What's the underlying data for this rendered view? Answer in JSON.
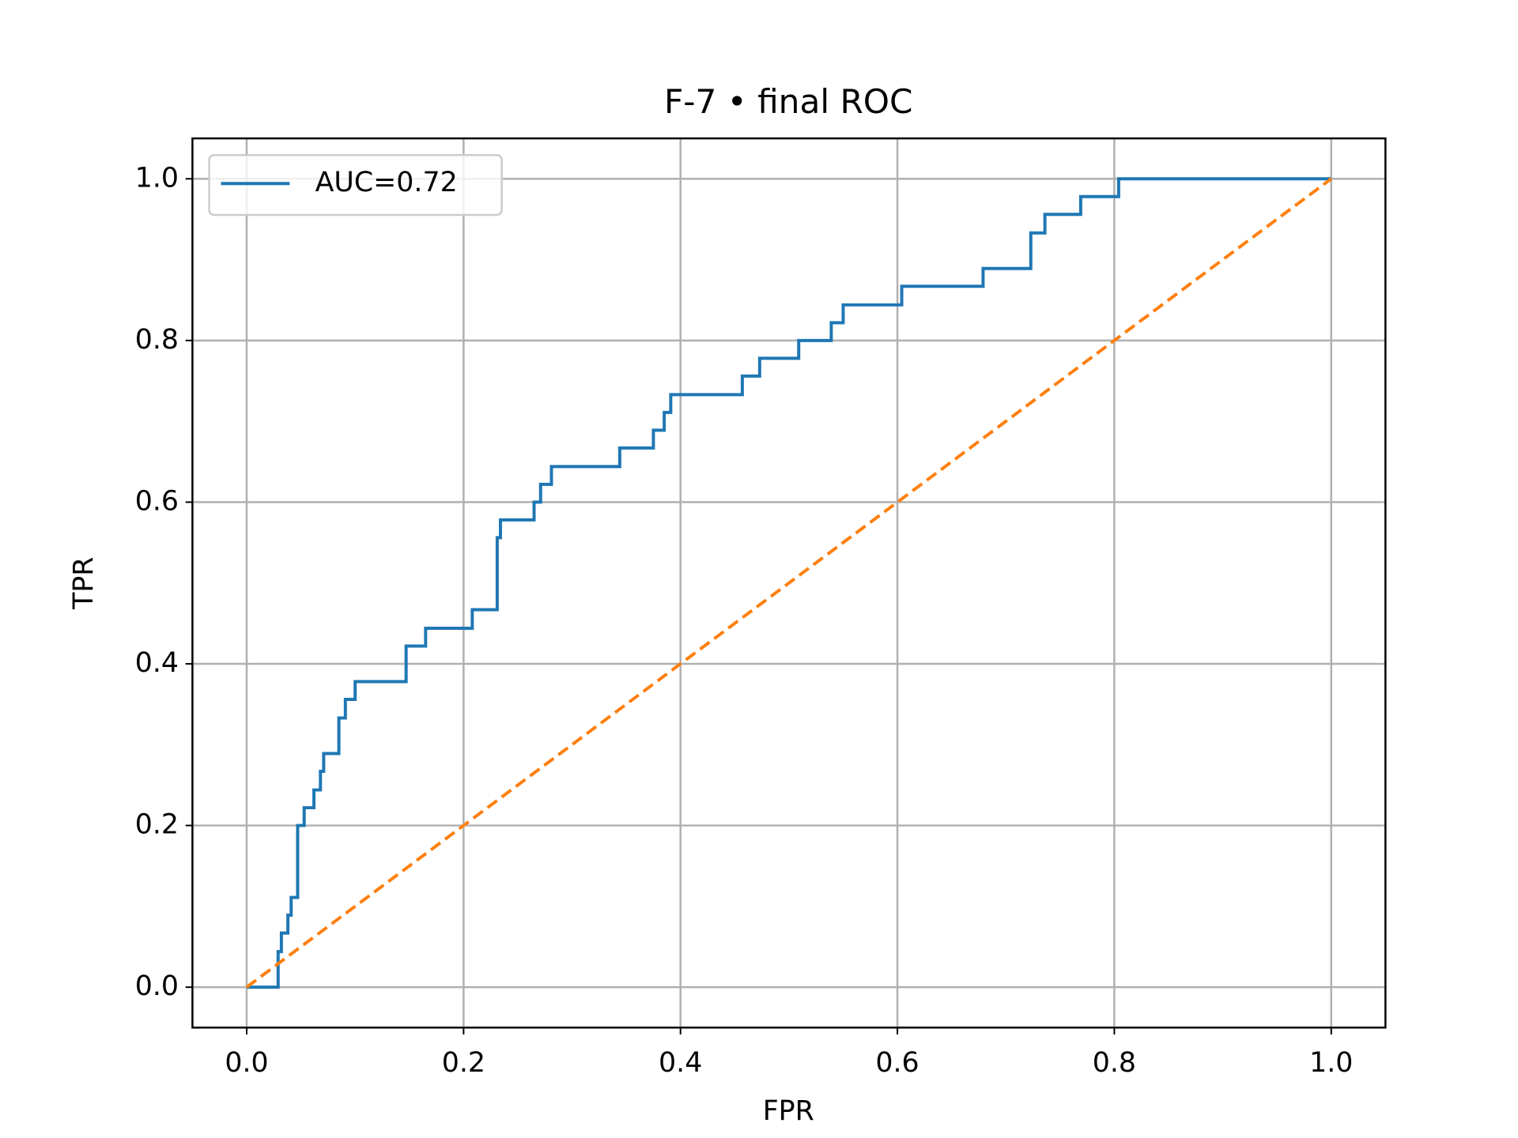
{
  "chart_data": {
    "type": "line",
    "title": "F-7 • final ROC",
    "x_label": "FPR",
    "y_label": "TPR",
    "xlim": [
      -0.05,
      1.05
    ],
    "ylim": [
      -0.05,
      1.05
    ],
    "xticks": [
      {
        "value": 0,
        "label": "0.0"
      },
      0.2,
      0.4,
      0.6,
      0.8,
      {
        "value": 1,
        "label": "1.0"
      }
    ],
    "yticks": [
      {
        "value": 0,
        "label": "0.0"
      },
      0.2,
      0.4,
      0.6,
      0.8,
      {
        "value": 1,
        "label": "1.0"
      }
    ],
    "grid": true,
    "legend": "upper left",
    "series": [
      {
        "name": "AUC=0.72",
        "color": "#1f77b4",
        "style": "solid",
        "x": [
          0,
          0.029,
          0.029,
          0.032,
          0.032,
          0.038,
          0.038,
          0.041,
          0.041,
          0.047,
          0.047,
          0.053,
          0.053,
          0.062,
          0.062,
          0.068,
          0.068,
          0.071,
          0.071,
          0.085,
          0.085,
          0.091,
          0.091,
          0.1,
          0.1,
          0.147,
          0.147,
          0.165,
          0.165,
          0.208,
          0.208,
          0.231,
          0.231,
          0.234,
          0.234,
          0.265,
          0.265,
          0.271,
          0.271,
          0.281,
          0.281,
          0.344,
          0.344,
          0.375,
          0.375,
          0.385,
          0.385,
          0.391,
          0.391,
          0.457,
          0.457,
          0.473,
          0.473,
          0.509,
          0.509,
          0.539,
          0.539,
          0.55,
          0.55,
          0.604,
          0.604,
          0.679,
          0.679,
          0.723,
          0.723,
          0.736,
          0.736,
          0.769,
          0.769,
          0.804,
          0.804,
          1
        ],
        "values": [
          0,
          0,
          0.044,
          0.044,
          0.067,
          0.067,
          0.089,
          0.089,
          0.111,
          0.111,
          0.2,
          0.2,
          0.222,
          0.222,
          0.244,
          0.244,
          0.267,
          0.267,
          0.289,
          0.289,
          0.333,
          0.333,
          0.356,
          0.356,
          0.378,
          0.378,
          0.422,
          0.422,
          0.444,
          0.444,
          0.467,
          0.467,
          0.556,
          0.556,
          0.578,
          0.578,
          0.6,
          0.6,
          0.622,
          0.622,
          0.644,
          0.644,
          0.667,
          0.667,
          0.689,
          0.689,
          0.711,
          0.711,
          0.733,
          0.733,
          0.756,
          0.756,
          0.778,
          0.778,
          0.8,
          0.8,
          0.822,
          0.822,
          0.844,
          0.844,
          0.867,
          0.867,
          0.889,
          0.889,
          0.933,
          0.933,
          0.956,
          0.956,
          0.978,
          0.978,
          1,
          1
        ]
      },
      {
        "color": "#ff7f0e",
        "style": "dashed",
        "x": [
          0,
          1
        ],
        "values": [
          0,
          1
        ]
      }
    ]
  }
}
